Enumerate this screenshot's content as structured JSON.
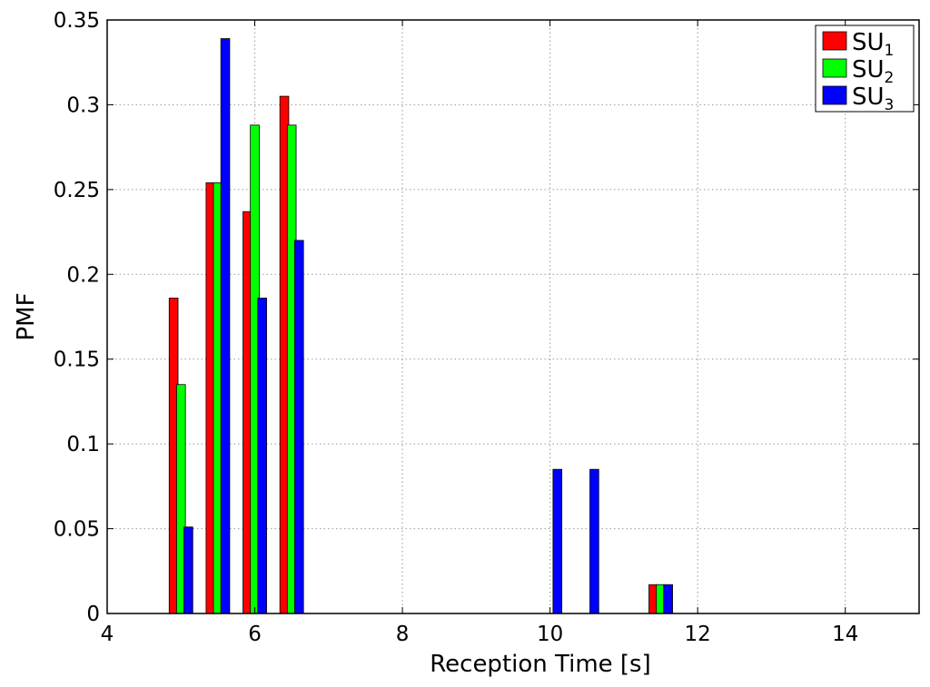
{
  "chart_data": {
    "type": "bar",
    "title": "",
    "xlabel": "Reception Time [s]",
    "ylabel": "PMF",
    "xlim": [
      4,
      15
    ],
    "ylim": [
      0,
      0.35
    ],
    "xticks": [
      4,
      6,
      8,
      10,
      12,
      14
    ],
    "xtick_labels": [
      "4",
      "6",
      "8",
      "10",
      "12",
      "14"
    ],
    "yticks": [
      0,
      0.05,
      0.1,
      0.15,
      0.2,
      0.25,
      0.3,
      0.35
    ],
    "ytick_labels": [
      "0",
      "0.05",
      "0.1",
      "0.15",
      "0.2",
      "0.25",
      "0.3",
      "0.35"
    ],
    "grid": true,
    "legend_position": "top-right",
    "bar_width": 0.12,
    "series": [
      {
        "name": "SU1",
        "legend_main": "SU",
        "legend_sub": "1",
        "color": "#ff0000",
        "points": [
          {
            "x": 4.9,
            "y": 0.186
          },
          {
            "x": 5.4,
            "y": 0.254
          },
          {
            "x": 5.9,
            "y": 0.237
          },
          {
            "x": 6.4,
            "y": 0.305
          },
          {
            "x": 11.4,
            "y": 0.017
          }
        ]
      },
      {
        "name": "SU2",
        "legend_main": "SU",
        "legend_sub": "2",
        "color": "#00ff00",
        "points": [
          {
            "x": 5.0,
            "y": 0.135
          },
          {
            "x": 5.5,
            "y": 0.254
          },
          {
            "x": 6.0,
            "y": 0.288
          },
          {
            "x": 6.5,
            "y": 0.288
          },
          {
            "x": 11.5,
            "y": 0.017
          }
        ]
      },
      {
        "name": "SU3",
        "legend_main": "SU",
        "legend_sub": "3",
        "color": "#0000ff",
        "points": [
          {
            "x": 5.1,
            "y": 0.051
          },
          {
            "x": 5.6,
            "y": 0.339
          },
          {
            "x": 6.1,
            "y": 0.186
          },
          {
            "x": 6.6,
            "y": 0.22
          },
          {
            "x": 10.1,
            "y": 0.085
          },
          {
            "x": 10.6,
            "y": 0.085
          },
          {
            "x": 11.6,
            "y": 0.017
          }
        ]
      }
    ]
  }
}
